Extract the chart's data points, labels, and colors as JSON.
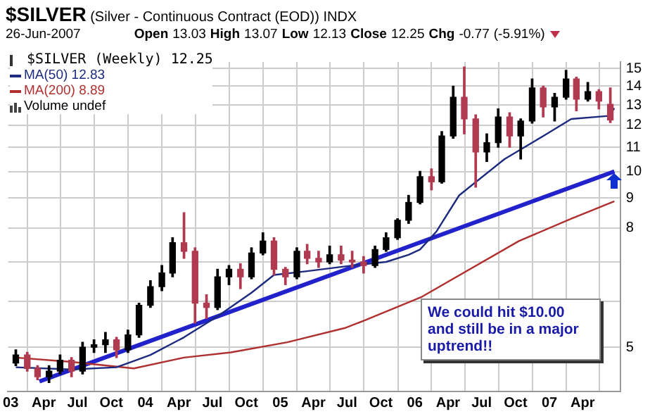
{
  "chart_data": {
    "type": "candlestick",
    "title": "$SILVER (Silver - Continuous Contract (EOD)) INDX",
    "subtitle": "26-Jun-2007 Open 13.03 High 13.07 Low 12.13 Close 12.25 Chg -0.77 (-5.91%)",
    "annotations": [
      "Volume undef",
      "We could hit $10.00 and still be in a major uptrend!!"
    ],
    "legend": "top left",
    "grid": true,
    "log": "y",
    "xlim": [
      "2002-12-25",
      "2007-07-12"
    ],
    "xticks": [
      {
        "value": "2003-01-01",
        "label": "03"
      },
      {
        "value": "2003-04-01",
        "label": "Apr"
      },
      {
        "value": "2003-07-01",
        "label": "Jul"
      },
      {
        "value": "2003-10-01",
        "label": "Oct"
      },
      {
        "value": "2004-01-01",
        "label": "04"
      },
      {
        "value": "2004-04-01",
        "label": "Apr"
      },
      {
        "value": "2004-07-01",
        "label": "Jul"
      },
      {
        "value": "2004-10-01",
        "label": "Oct"
      },
      {
        "value": "2005-01-01",
        "label": "05"
      },
      {
        "value": "2005-04-01",
        "label": "Apr"
      },
      {
        "value": "2005-07-01",
        "label": "Jul"
      },
      {
        "value": "2005-10-01",
        "label": "Oct"
      },
      {
        "value": "2006-01-01",
        "label": "06"
      },
      {
        "value": "2006-04-01",
        "label": "Apr"
      },
      {
        "value": "2006-07-01",
        "label": "Jul"
      },
      {
        "value": "2006-10-01",
        "label": "Oct"
      },
      {
        "value": "2007-01-01",
        "label": "07"
      },
      {
        "value": "2007-04-01",
        "label": "Apr"
      }
    ],
    "ylim": [
      4.2,
      15.4
    ],
    "yticks": [
      5,
      {
        "value": 6,
        "label": null
      },
      {
        "value": 7,
        "label": null
      },
      8,
      9,
      10,
      11,
      12,
      13,
      14,
      15
    ],
    "series": [
      {
        "name": "$SILVER (Weekly) 12.25",
        "x": [
          "2003-01-15",
          "2003-02-15",
          "2003-03-15",
          "2003-04-15",
          "2003-05-15",
          "2003-06-15",
          "2003-07-15",
          "2003-08-15",
          "2003-09-15",
          "2003-10-15",
          "2003-11-15",
          "2003-12-15",
          "2004-01-15",
          "2004-02-15",
          "2004-03-15",
          "2004-04-15",
          "2004-05-15",
          "2004-06-15",
          "2004-07-15",
          "2004-08-15",
          "2004-09-15",
          "2004-10-15",
          "2004-11-15",
          "2004-12-15",
          "2005-01-15",
          "2005-02-15",
          "2005-03-15",
          "2005-04-15",
          "2005-05-15",
          "2005-06-15",
          "2005-07-15",
          "2005-08-15",
          "2005-09-15",
          "2005-10-15",
          "2005-11-15",
          "2005-12-15",
          "2006-01-15",
          "2006-02-15",
          "2006-03-15",
          "2006-04-15",
          "2006-05-15",
          "2006-06-15",
          "2006-07-15",
          "2006-08-15",
          "2006-09-15",
          "2006-10-15",
          "2006-11-15",
          "2006-12-15",
          "2007-01-15",
          "2007-02-15",
          "2007-03-15",
          "2007-04-15",
          "2007-05-15",
          "2007-06-15"
        ],
        "ohlc": [
          [
            4.7,
            4.95,
            4.65,
            4.85
          ],
          [
            4.85,
            4.9,
            4.55,
            4.6
          ],
          [
            4.6,
            4.65,
            4.4,
            4.45
          ],
          [
            4.45,
            4.65,
            4.35,
            4.55
          ],
          [
            4.55,
            4.85,
            4.5,
            4.75
          ],
          [
            4.75,
            4.8,
            4.45,
            4.55
          ],
          [
            4.55,
            5.1,
            4.5,
            5.0
          ],
          [
            5.0,
            5.15,
            4.9,
            5.05
          ],
          [
            5.05,
            5.3,
            4.9,
            5.15
          ],
          [
            5.15,
            5.2,
            4.8,
            4.95
          ],
          [
            4.95,
            5.35,
            4.9,
            5.25
          ],
          [
            5.25,
            5.95,
            5.2,
            5.9
          ],
          [
            5.9,
            6.5,
            5.85,
            6.35
          ],
          [
            6.35,
            6.9,
            6.25,
            6.7
          ],
          [
            6.7,
            7.7,
            6.6,
            7.55
          ],
          [
            7.55,
            8.5,
            7.1,
            7.3
          ],
          [
            7.3,
            7.4,
            5.5,
            5.95
          ],
          [
            5.95,
            6.15,
            5.6,
            5.85
          ],
          [
            5.85,
            6.8,
            5.8,
            6.6
          ],
          [
            6.6,
            6.9,
            6.4,
            6.8
          ],
          [
            6.8,
            6.95,
            6.3,
            6.6
          ],
          [
            6.6,
            7.4,
            6.55,
            7.25
          ],
          [
            7.25,
            7.85,
            7.2,
            7.6
          ],
          [
            7.6,
            7.7,
            6.65,
            6.8
          ],
          [
            6.8,
            6.85,
            6.4,
            6.6
          ],
          [
            6.6,
            7.4,
            6.55,
            7.3
          ],
          [
            7.3,
            7.5,
            6.95,
            7.1
          ],
          [
            7.1,
            7.3,
            6.85,
            7.0
          ],
          [
            7.0,
            7.45,
            6.95,
            7.2
          ],
          [
            7.2,
            7.45,
            6.95,
            7.05
          ],
          [
            7.05,
            7.3,
            6.85,
            7.0
          ],
          [
            7.0,
            7.15,
            6.7,
            6.9
          ],
          [
            6.9,
            7.45,
            6.85,
            7.35
          ],
          [
            7.35,
            7.85,
            7.3,
            7.7
          ],
          [
            7.7,
            8.3,
            7.65,
            8.25
          ],
          [
            8.25,
            9.1,
            8.15,
            8.85
          ],
          [
            8.85,
            10.0,
            8.8,
            9.8
          ],
          [
            9.8,
            10.1,
            9.3,
            9.6
          ],
          [
            9.6,
            11.7,
            9.55,
            11.5
          ],
          [
            11.5,
            14.0,
            11.4,
            13.4
          ],
          [
            13.4,
            15.1,
            11.6,
            12.3
          ],
          [
            12.3,
            12.5,
            9.4,
            10.8
          ],
          [
            10.8,
            11.6,
            10.4,
            11.2
          ],
          [
            11.2,
            12.8,
            11.0,
            12.4
          ],
          [
            12.4,
            12.6,
            11.0,
            11.5
          ],
          [
            11.5,
            12.3,
            10.5,
            12.2
          ],
          [
            12.2,
            14.4,
            12.1,
            13.9
          ],
          [
            13.9,
            14.0,
            12.4,
            12.9
          ],
          [
            12.9,
            13.6,
            12.2,
            13.4
          ],
          [
            13.4,
            14.9,
            13.3,
            14.4
          ],
          [
            14.4,
            14.5,
            12.7,
            13.3
          ],
          [
            13.3,
            14.2,
            13.2,
            13.7
          ],
          [
            13.7,
            13.8,
            12.8,
            13.2
          ],
          [
            13.03,
            13.9,
            12.13,
            12.25
          ]
        ],
        "colors": [
          "#000000",
          "#b03a50",
          "#b03a50",
          "#000000",
          "#000000",
          "#b03a50",
          "#000000",
          "#000000",
          "#000000",
          "#b03a50",
          "#000000",
          "#000000",
          "#000000",
          "#000000",
          "#000000",
          "#b03a50",
          "#b03a50",
          "#b03a50",
          "#000000",
          "#000000",
          "#b03a50",
          "#000000",
          "#000000",
          "#b03a50",
          "#b03a50",
          "#000000",
          "#b03a50",
          "#b03a50",
          "#000000",
          "#b03a50",
          "#b03a50",
          "#b03a50",
          "#000000",
          "#000000",
          "#000000",
          "#000000",
          "#000000",
          "#b03a50",
          "#000000",
          "#000000",
          "#b03a50",
          "#b03a50",
          "#000000",
          "#000000",
          "#b03a50",
          "#000000",
          "#000000",
          "#b03a50",
          "#000000",
          "#000000",
          "#b03a50",
          "#000000",
          "#b03a50",
          "#b03a50"
        ]
      },
      {
        "name": "MA(50) 12.83",
        "type": "line",
        "color": "#1c2a80",
        "x": [
          "2003-01-15",
          "2003-06-15",
          "2003-10-15",
          "2004-01-15",
          "2004-04-15",
          "2004-07-15",
          "2004-10-15",
          "2004-12-15",
          "2005-03-15",
          "2005-07-15",
          "2005-10-15",
          "2005-12-15",
          "2006-01-15",
          "2006-03-01",
          "2006-05-01",
          "2006-09-01",
          "2006-12-15",
          "2007-03-01",
          "2007-06-10",
          "2007-06-26"
        ],
        "values": [
          4.62,
          4.58,
          4.62,
          4.85,
          5.2,
          5.65,
          6.2,
          6.65,
          6.75,
          6.9,
          7.0,
          7.2,
          7.35,
          7.9,
          9.1,
          10.5,
          11.5,
          12.3,
          12.45,
          12.83
        ]
      },
      {
        "name": "MA(200) 8.89",
        "type": "line",
        "color": "#b03030",
        "x": [
          "2003-01-15",
          "2003-06-15",
          "2003-12-01",
          "2004-04-15",
          "2004-08-20",
          "2005-01-20",
          "2005-06-28",
          "2005-08-15",
          "2006-01-20",
          "2006-10-10",
          "2007-03-01",
          "2007-06-26"
        ],
        "values": [
          4.8,
          4.72,
          4.6,
          4.8,
          4.9,
          5.1,
          5.4,
          5.55,
          6.1,
          7.6,
          8.3,
          8.89
        ]
      },
      {
        "type": "line",
        "color": "#2222cc",
        "x": [
          "2003-03-20",
          "2007-06-26"
        ],
        "values": [
          4.37,
          10.0
        ]
      }
    ]
  }
}
